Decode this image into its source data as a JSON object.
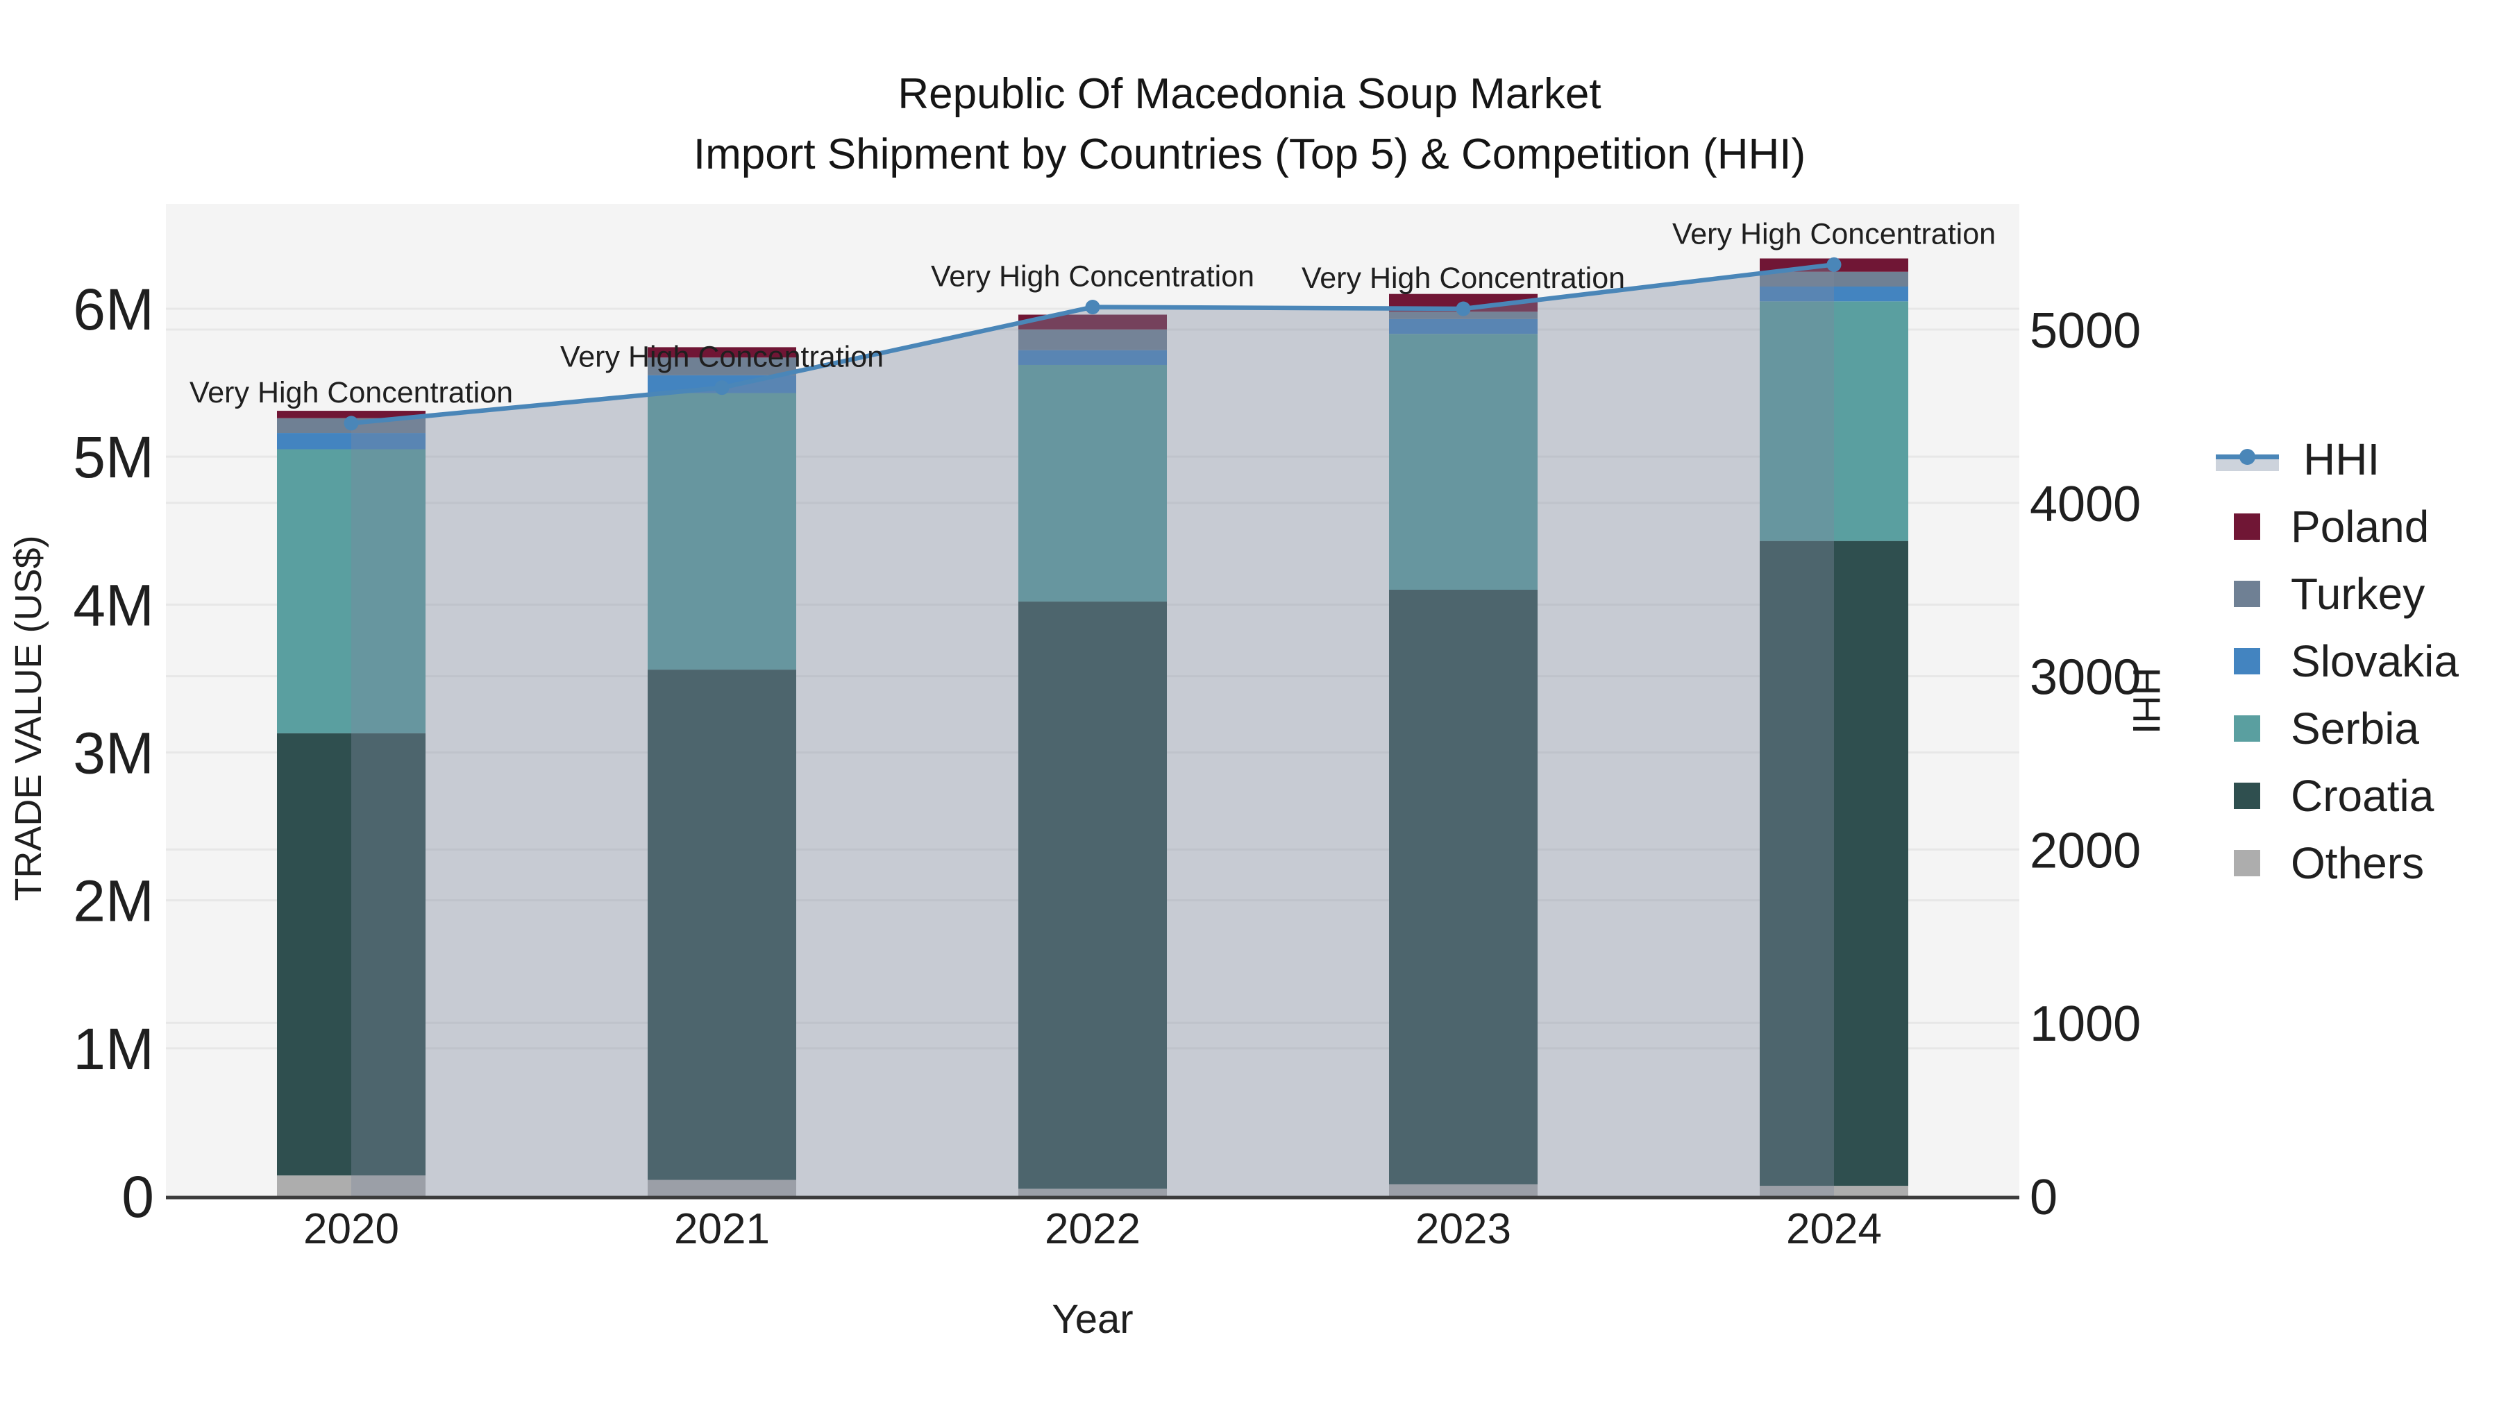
{
  "title": {
    "line1": "Republic Of Macedonia Soup Market",
    "line2": "Import Shipment by Countries (Top 5) & Competition (HHI)"
  },
  "axes": {
    "x": {
      "title": "Year",
      "categories": [
        "2020",
        "2021",
        "2022",
        "2023",
        "2024"
      ]
    },
    "y_left": {
      "title": "TRADE VALUE (US$)",
      "ticks": [
        {
          "label": "0",
          "value": 0
        },
        {
          "label": "1M",
          "value": 1
        },
        {
          "label": "2M",
          "value": 2
        },
        {
          "label": "3M",
          "value": 3
        },
        {
          "label": "4M",
          "value": 4
        },
        {
          "label": "5M",
          "value": 5
        },
        {
          "label": "6M",
          "value": 6
        }
      ],
      "range": [
        0,
        6.71
      ]
    },
    "y_right": {
      "title": "HHI",
      "ticks": [
        {
          "label": "0",
          "value": 0
        },
        {
          "label": "1000",
          "value": 1000
        },
        {
          "label": "2000",
          "value": 2000
        },
        {
          "label": "3000",
          "value": 3000
        },
        {
          "label": "4000",
          "value": 4000
        },
        {
          "label": "5000",
          "value": 5000
        }
      ],
      "range": [
        0,
        5722
      ]
    }
  },
  "legend": {
    "items": [
      {
        "label": "HHI",
        "type": "line",
        "color": "#4a86b8"
      },
      {
        "label": "Poland",
        "type": "square",
        "color": "#701635"
      },
      {
        "label": "Turkey",
        "type": "square",
        "color": "#6f8094"
      },
      {
        "label": "Slovakia",
        "type": "square",
        "color": "#4384c0"
      },
      {
        "label": "Serbia",
        "type": "square",
        "color": "#5a9fa0"
      },
      {
        "label": "Croatia",
        "type": "square",
        "color": "#2f4f4f"
      },
      {
        "label": "Others",
        "type": "square",
        "color": "#adadad"
      }
    ]
  },
  "chart_data": {
    "type": "bar+line dual-axis (stacked bars left axis, HHI line with area fill right axis)",
    "categories": [
      "2020",
      "2021",
      "2022",
      "2023",
      "2024"
    ],
    "bar_unit": "M US$",
    "stack_order_bottom_to_top": [
      "Others",
      "Croatia",
      "Serbia",
      "Slovakia",
      "Turkey",
      "Poland"
    ],
    "series": [
      {
        "name": "Poland",
        "axis": "left",
        "color": "#701635",
        "values": [
          0.05,
          0.07,
          0.1,
          0.12,
          0.09
        ]
      },
      {
        "name": "Turkey",
        "axis": "left",
        "color": "#6f8094",
        "values": [
          0.1,
          0.12,
          0.14,
          0.05,
          0.1
        ]
      },
      {
        "name": "Slovakia",
        "axis": "left",
        "color": "#4384c0",
        "values": [
          0.11,
          0.12,
          0.1,
          0.1,
          0.1
        ]
      },
      {
        "name": "Serbia",
        "axis": "left",
        "color": "#5a9fa0",
        "values": [
          1.92,
          1.87,
          1.6,
          1.73,
          1.62
        ]
      },
      {
        "name": "Croatia",
        "axis": "left",
        "color": "#2f4f4f",
        "values": [
          2.99,
          3.45,
          3.97,
          4.02,
          4.36
        ]
      },
      {
        "name": "Others",
        "axis": "left",
        "color": "#adadad",
        "values": [
          0.14,
          0.11,
          0.05,
          0.08,
          0.07
        ]
      }
    ],
    "bar_totals": [
      5.31,
      5.74,
      5.96,
      6.1,
      6.34
    ],
    "line": {
      "name": "HHI",
      "axis": "right",
      "color": "#4a86b8",
      "area_fill": "rgba(125,138,158,0.38)",
      "values": [
        4460,
        4665,
        5130,
        5120,
        5375
      ]
    },
    "point_annotations": [
      "Very High Concentration",
      "Very High Concentration",
      "Very High Concentration",
      "Very High Concentration",
      "Very High Concentration"
    ],
    "style": {
      "plot_bg": "#f4f4f4",
      "gridline": "#e7e7e7",
      "axis_line": "#3c3c3c"
    },
    "legend_position": "top-right, outside plot",
    "grid": "horizontal gridlines for both axes"
  }
}
